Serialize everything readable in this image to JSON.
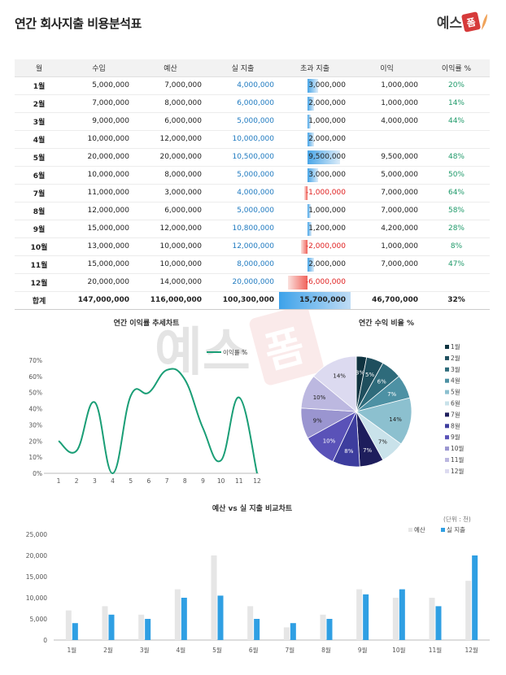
{
  "title": "연간 회사지출 비용분석표",
  "logo": {
    "text": "예스",
    "badge": "폼"
  },
  "table": {
    "headers": [
      "월",
      "수입",
      "예산",
      "실 지출",
      "초과 지출",
      "이익",
      "이익률 %"
    ],
    "rows": [
      {
        "month": "1월",
        "income": "5,000,000",
        "budget": "7,000,000",
        "actual": "4,000,000",
        "over": "3,000,000",
        "over_value": 3000000,
        "profit": "1,000,000",
        "rate": "20%"
      },
      {
        "month": "2월",
        "income": "7,000,000",
        "budget": "8,000,000",
        "actual": "6,000,000",
        "over": "2,000,000",
        "over_value": 2000000,
        "profit": "1,000,000",
        "rate": "14%"
      },
      {
        "month": "3월",
        "income": "9,000,000",
        "budget": "6,000,000",
        "actual": "5,000,000",
        "over": "1,000,000",
        "over_value": 1000000,
        "profit": "4,000,000",
        "rate": "44%"
      },
      {
        "month": "4월",
        "income": "10,000,000",
        "budget": "12,000,000",
        "actual": "10,000,000",
        "over": "2,000,000",
        "over_value": 2000000,
        "profit": "",
        "rate": ""
      },
      {
        "month": "5월",
        "income": "20,000,000",
        "budget": "20,000,000",
        "actual": "10,500,000",
        "over": "9,500,000",
        "over_value": 9500000,
        "profit": "9,500,000",
        "rate": "48%"
      },
      {
        "month": "6월",
        "income": "10,000,000",
        "budget": "8,000,000",
        "actual": "5,000,000",
        "over": "3,000,000",
        "over_value": 3000000,
        "profit": "5,000,000",
        "rate": "50%"
      },
      {
        "month": "7월",
        "income": "11,000,000",
        "budget": "3,000,000",
        "actual": "4,000,000",
        "over": "-1,000,000",
        "over_value": -1000000,
        "profit": "7,000,000",
        "rate": "64%"
      },
      {
        "month": "8월",
        "income": "12,000,000",
        "budget": "6,000,000",
        "actual": "5,000,000",
        "over": "1,000,000",
        "over_value": 1000000,
        "profit": "7,000,000",
        "rate": "58%"
      },
      {
        "month": "9월",
        "income": "15,000,000",
        "budget": "12,000,000",
        "actual": "10,800,000",
        "over": "1,200,000",
        "over_value": 1200000,
        "profit": "4,200,000",
        "rate": "28%"
      },
      {
        "month": "10월",
        "income": "13,000,000",
        "budget": "10,000,000",
        "actual": "12,000,000",
        "over": "-2,000,000",
        "over_value": -2000000,
        "profit": "1,000,000",
        "rate": "8%"
      },
      {
        "month": "11월",
        "income": "15,000,000",
        "budget": "10,000,000",
        "actual": "8,000,000",
        "over": "2,000,000",
        "over_value": 2000000,
        "profit": "7,000,000",
        "rate": "47%"
      },
      {
        "month": "12월",
        "income": "20,000,000",
        "budget": "14,000,000",
        "actual": "20,000,000",
        "over": "-6,000,000",
        "over_value": -6000000,
        "profit": "",
        "rate": ""
      }
    ],
    "total": {
      "label": "합계",
      "income": "147,000,000",
      "budget": "116,000,000",
      "actual": "100,300,000",
      "over": "15,700,000",
      "profit": "46,700,000",
      "rate": "32%"
    }
  },
  "chart_data": [
    {
      "type": "line",
      "title": "연간 이익률 추세차트",
      "x": [
        1,
        2,
        3,
        4,
        5,
        6,
        7,
        8,
        9,
        10,
        11,
        12
      ],
      "series": [
        {
          "name": "이익률 %",
          "values": [
            20,
            14,
            44,
            0,
            48,
            50,
            64,
            58,
            28,
            8,
            47,
            0
          ],
          "color": "#1a9e76"
        }
      ],
      "yticks": [
        "0%",
        "10%",
        "20%",
        "30%",
        "40%",
        "50%",
        "60%",
        "70%"
      ],
      "ylim": [
        0,
        70
      ],
      "legend": "top"
    },
    {
      "type": "pie",
      "title": "연간 수익 비율 %",
      "categories": [
        "1월",
        "2월",
        "3월",
        "4월",
        "5월",
        "6월",
        "7월",
        "8월",
        "9월",
        "10월",
        "11월",
        "12월"
      ],
      "values": [
        3,
        5,
        6,
        7,
        14,
        7,
        7,
        8,
        10,
        9,
        10,
        14
      ],
      "labels": [
        "3%",
        "5%",
        "6%",
        "7%",
        "14%",
        "7%",
        "7%",
        "8%",
        "10%",
        "9%",
        "10%",
        "14%"
      ],
      "colors": [
        "#0f3340",
        "#1f4f5e",
        "#2e6b7b",
        "#4d91a4",
        "#8cc0cf",
        "#c9e2ea",
        "#1e1e5c",
        "#3d3d9e",
        "#5a52b8",
        "#9a95d0",
        "#bcb8e0",
        "#dcdaf0"
      ],
      "legend": "right"
    },
    {
      "type": "bar",
      "title": "예산 vs 실 지출 비교차트",
      "unit_note": "(단위 : 천)",
      "categories": [
        "1월",
        "2월",
        "3월",
        "4월",
        "5월",
        "6월",
        "7월",
        "8월",
        "9월",
        "10월",
        "11월",
        "12월"
      ],
      "series": [
        {
          "name": "예산",
          "values": [
            7000,
            8000,
            6000,
            12000,
            20000,
            8000,
            3000,
            6000,
            12000,
            10000,
            10000,
            14000
          ],
          "color": "#e6e6e6"
        },
        {
          "name": "실 지출",
          "values": [
            4000,
            6000,
            5000,
            10000,
            10500,
            5000,
            4000,
            5000,
            10800,
            12000,
            8000,
            20000
          ],
          "color": "#2f9fe3"
        }
      ],
      "yticks": [
        "0",
        "5,000",
        "10,000",
        "15,000",
        "20,000",
        "25,000"
      ],
      "ylim": [
        0,
        25000
      ],
      "legend": "top-right"
    }
  ]
}
